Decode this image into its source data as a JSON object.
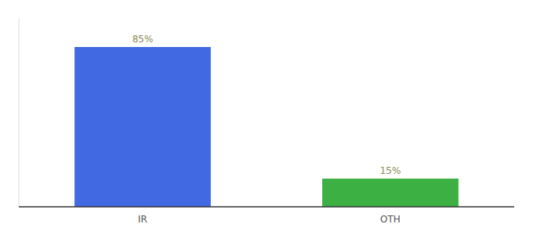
{
  "chart_data": {
    "type": "bar",
    "categories": [
      "IR",
      "OTH"
    ],
    "values": [
      85,
      15
    ],
    "value_labels": [
      "85%",
      "15%"
    ],
    "colors": [
      "#4169e1",
      "#3cb043"
    ],
    "ylim": [
      0,
      100
    ],
    "tick_labels": "x"
  }
}
